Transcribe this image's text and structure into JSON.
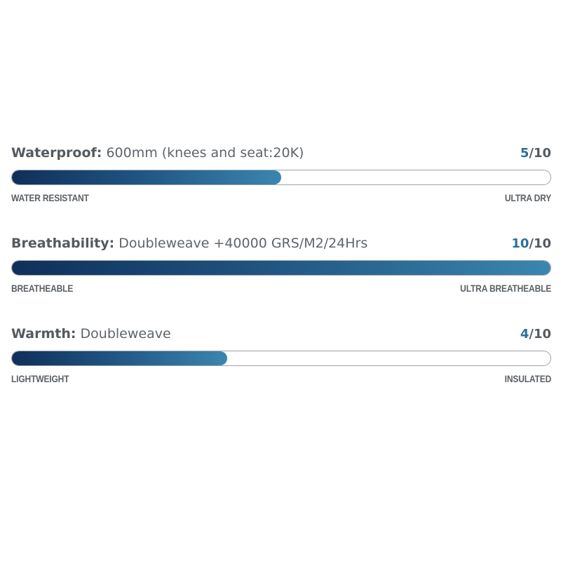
{
  "specs": [
    {
      "label": "Waterproof:",
      "description": "600mm (knees and seat:20K)",
      "score": 5,
      "score_text": "5",
      "max_text": "/10",
      "min_label": "WATER RESISTANT",
      "max_label": "ULTRA DRY"
    },
    {
      "label": "Breathability:",
      "description": "Doubleweave +40000 GRS/M2/24Hrs",
      "score": 10,
      "score_text": "10",
      "max_text": "/10",
      "min_label": "BREATHEABLE",
      "max_label": "ULTRA BREATHEABLE"
    },
    {
      "label": "Warmth:",
      "description": "Doubleweave",
      "score": 4,
      "score_text": "4",
      "max_text": "/10",
      "min_label": "LIGHTWEIGHT",
      "max_label": "INSULATED"
    }
  ],
  "scale_max": 10,
  "colors": {
    "accent": "#2d6f99",
    "bar_start": "#0f2f5a",
    "bar_end": "#3a86b0",
    "text": "#555a60",
    "track_border": "#9ea3a8"
  }
}
